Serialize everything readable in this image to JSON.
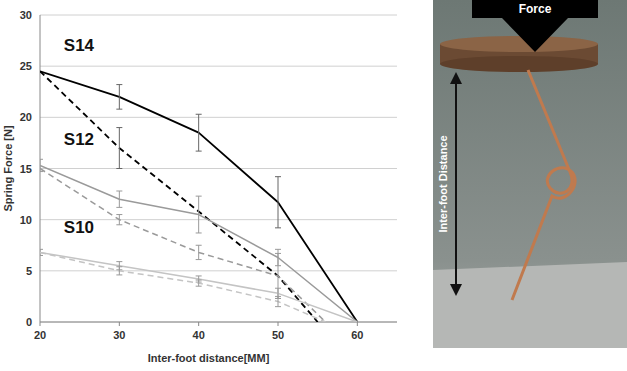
{
  "chart_data": {
    "type": "line",
    "x_label": "Inter-foot distance[MM]",
    "y_label": "Spring Force [N]",
    "xlim": [
      20,
      65
    ],
    "ylim": [
      0,
      30
    ],
    "xticks": [
      20,
      30,
      40,
      50,
      60
    ],
    "yticks": [
      0,
      5,
      10,
      15,
      20,
      25,
      30
    ],
    "grid": true,
    "series": [
      {
        "color": "#000000",
        "line_style": "solid",
        "x": [
          20,
          30,
          40,
          50,
          60
        ],
        "values": [
          24.5,
          22,
          18.5,
          11.7,
          0
        ],
        "errors": [
          null,
          1.2,
          1.8,
          2.5,
          null
        ]
      },
      {
        "color": "#000000",
        "line_style": "dashed",
        "x": [
          20,
          30,
          40,
          50,
          55
        ],
        "values": [
          24.5,
          17,
          10.8,
          4.5,
          0
        ],
        "errors": [
          null,
          2,
          null,
          null,
          null
        ]
      },
      {
        "color": "#9a9a9a",
        "line_style": "solid",
        "x": [
          20,
          30,
          40,
          50,
          60
        ],
        "values": [
          15.3,
          12,
          10.5,
          6.3,
          0
        ],
        "errors": [
          0.6,
          0.8,
          1.8,
          0.8,
          null
        ]
      },
      {
        "color": "#9a9a9a",
        "line_style": "dashed",
        "x": [
          20,
          30,
          40,
          50,
          56
        ],
        "values": [
          15,
          10,
          6.8,
          4.5,
          0
        ],
        "errors": [
          null,
          0.5,
          0.7,
          2.2,
          null
        ]
      },
      {
        "color": "#c4c4c4",
        "line_style": "solid",
        "x": [
          20,
          30,
          40,
          50,
          60
        ],
        "values": [
          6.8,
          5.5,
          4.2,
          2.8,
          0
        ],
        "errors": [
          0.3,
          0.4,
          0.3,
          0.5,
          null
        ]
      },
      {
        "color": "#c4c4c4",
        "line_style": "dashed",
        "x": [
          20,
          30,
          40,
          50,
          56
        ],
        "values": [
          6.8,
          5,
          3.8,
          2,
          0
        ],
        "errors": [
          null,
          0.4,
          0.3,
          0.5,
          null
        ]
      }
    ],
    "annotations": [
      {
        "text": "S14",
        "x": 23,
        "y": 26.5
      },
      {
        "text": "S12",
        "x": 23,
        "y": 17.3
      },
      {
        "text": "S10",
        "x": 23,
        "y": 8.7
      }
    ],
    "photo": {
      "force_label": "Force",
      "distance_label": "Inter-foot Distance"
    }
  }
}
